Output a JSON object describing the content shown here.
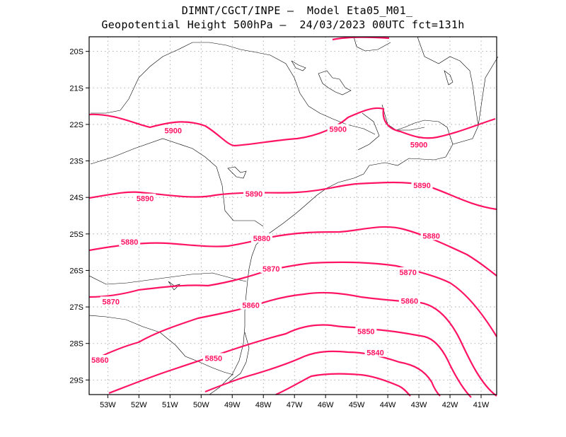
{
  "title": {
    "line1": "DIMNT/CGCT/INPE —  Model Eta05_M01_",
    "line2": "Geopotential Height 500hPa —  24/03/2023 00UTC fct=131h"
  },
  "map": {
    "lat_range": [
      -29.4,
      -19.6
    ],
    "lon_range": [
      -53.6,
      -40.5
    ],
    "lat_ticks": [
      "20S",
      "21S",
      "22S",
      "23S",
      "24S",
      "25S",
      "26S",
      "27S",
      "28S",
      "29S"
    ],
    "lon_ticks": [
      "53W",
      "52W",
      "51W",
      "50W",
      "49W",
      "48W",
      "47W",
      "46W",
      "45W",
      "44W",
      "43W",
      "42W",
      "41W"
    ],
    "grid": true,
    "contour_color": "#ff1464",
    "contour_labels": [
      {
        "text": "5900",
        "lon": -50.9,
        "lat": -22.17
      },
      {
        "text": "5900",
        "lon": -45.6,
        "lat": -22.13
      },
      {
        "text": "5900",
        "lon": -43.0,
        "lat": -22.55
      },
      {
        "text": "5890",
        "lon": -51.8,
        "lat": -24.03
      },
      {
        "text": "5890",
        "lon": -48.3,
        "lat": -23.9
      },
      {
        "text": "5890",
        "lon": -42.9,
        "lat": -23.67
      },
      {
        "text": "5880",
        "lon": -52.3,
        "lat": -25.22
      },
      {
        "text": "5880",
        "lon": -48.05,
        "lat": -25.12
      },
      {
        "text": "5880",
        "lon": -42.6,
        "lat": -25.05
      },
      {
        "text": "5870",
        "lon": -47.75,
        "lat": -25.95
      },
      {
        "text": "5870",
        "lon": -43.35,
        "lat": -26.05
      },
      {
        "text": "5870",
        "lon": -52.9,
        "lat": -26.85
      },
      {
        "text": "5860",
        "lon": -48.4,
        "lat": -26.95
      },
      {
        "text": "5860",
        "lon": -43.3,
        "lat": -26.83
      },
      {
        "text": "5860",
        "lon": -53.25,
        "lat": -28.45
      },
      {
        "text": "5850",
        "lon": -44.7,
        "lat": -27.67
      },
      {
        "text": "5850",
        "lon": -49.6,
        "lat": -28.4
      },
      {
        "text": "5840",
        "lon": -44.4,
        "lat": -28.25
      }
    ]
  }
}
